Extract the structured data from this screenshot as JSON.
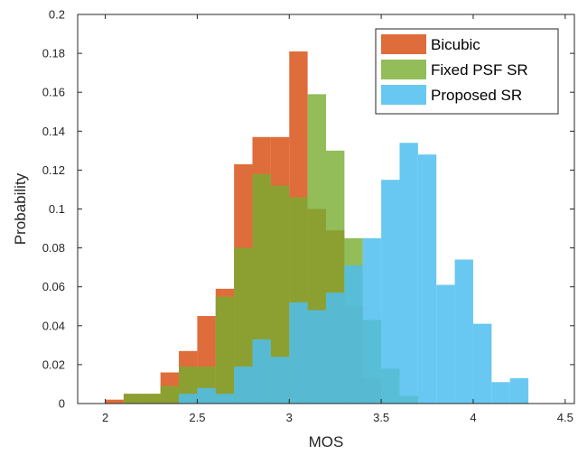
{
  "chart_data": {
    "type": "bar",
    "subtype": "overlapping-histogram",
    "title": "",
    "xlabel": "MOS",
    "ylabel": "Probability",
    "xlim": [
      1.85,
      4.55
    ],
    "ylim": [
      0,
      0.2
    ],
    "xticks": [
      2,
      2.5,
      3,
      3.5,
      4,
      4.5
    ],
    "xtick_labels": [
      "2",
      "2.5",
      "3",
      "3.5",
      "4",
      "4.5"
    ],
    "yticks": [
      0,
      0.02,
      0.04,
      0.06,
      0.08,
      0.1,
      0.12,
      0.14,
      0.16,
      0.18,
      0.2
    ],
    "ytick_labels": [
      "0",
      "0.02",
      "0.04",
      "0.06",
      "0.08",
      "0.1",
      "0.12",
      "0.14",
      "0.16",
      "0.18",
      "0.2"
    ],
    "grid": false,
    "bin_width": 0.1,
    "legend": {
      "placement": "top-right"
    },
    "series": [
      {
        "name": "Bicubic",
        "color": "#d95319",
        "opacity": 0.85,
        "bin_left_edges": [
          2.0,
          2.1,
          2.2,
          2.3,
          2.4,
          2.5,
          2.6,
          2.7,
          2.8,
          2.9,
          3.0,
          3.1,
          3.2,
          3.3,
          3.4
        ],
        "values": [
          0.002,
          0.005,
          0.005,
          0.016,
          0.027,
          0.045,
          0.059,
          0.123,
          0.137,
          0.137,
          0.181,
          0.1,
          0.089,
          0.05,
          0.013
        ]
      },
      {
        "name": "Fixed PSF SR",
        "color": "#77ac30",
        "opacity": 0.8,
        "bin_left_edges": [
          2.1,
          2.2,
          2.3,
          2.4,
          2.5,
          2.6,
          2.7,
          2.8,
          2.9,
          3.0,
          3.1,
          3.2,
          3.3,
          3.4,
          3.5,
          3.6
        ],
        "values": [
          0.005,
          0.005,
          0.009,
          0.019,
          0.019,
          0.055,
          0.08,
          0.118,
          0.112,
          0.106,
          0.159,
          0.13,
          0.085,
          0.043,
          0.018,
          0.004
        ]
      },
      {
        "name": "Proposed SR",
        "color": "#4dbeee",
        "opacity": 0.85,
        "bin_left_edges": [
          2.4,
          2.5,
          2.6,
          2.7,
          2.8,
          2.9,
          3.0,
          3.1,
          3.2,
          3.3,
          3.4,
          3.5,
          3.6,
          3.7,
          3.8,
          3.9,
          4.0,
          4.1,
          4.2
        ],
        "values": [
          0.005,
          0.008,
          0.005,
          0.019,
          0.033,
          0.024,
          0.052,
          0.048,
          0.057,
          0.071,
          0.085,
          0.115,
          0.134,
          0.128,
          0.061,
          0.074,
          0.041,
          0.011,
          0.013
        ]
      }
    ]
  }
}
